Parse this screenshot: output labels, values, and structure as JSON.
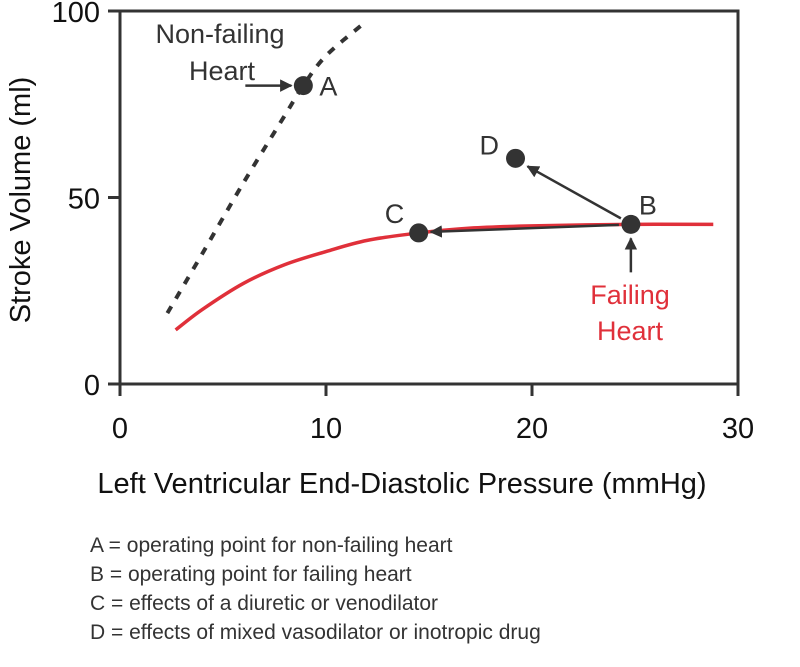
{
  "chart_data": {
    "type": "line",
    "title": "",
    "xlabel": "Left Ventricular End-Diastolic Pressure (mmHg)",
    "ylabel": "Stroke Volume (ml)",
    "xlim": [
      0,
      30
    ],
    "ylim": [
      0,
      100
    ],
    "xticks": [
      "0",
      "10",
      "20",
      "30"
    ],
    "yticks": [
      "0",
      "50",
      "100"
    ],
    "grid": false,
    "colors": {
      "axis": "#333333",
      "failing": "#e0303a",
      "nonfailing": "#333333",
      "points": "#333333"
    },
    "series": [
      {
        "name": "Non-failing Heart",
        "style": "dotted",
        "x": [
          2.3,
          4,
          6,
          8,
          8.9,
          10,
          11.9
        ],
        "y": [
          19,
          35,
          54,
          72,
          80,
          88,
          97
        ]
      },
      {
        "name": "Failing Heart",
        "style": "solid",
        "x": [
          2.7,
          4,
          6,
          8,
          10,
          12,
          14.5,
          17,
          20,
          24.8,
          28.8
        ],
        "y": [
          14.5,
          20,
          27,
          32,
          35.5,
          38.5,
          40.5,
          41.8,
          42.4,
          42.8,
          42.8
        ]
      }
    ],
    "points": [
      {
        "label": "A",
        "x": 8.9,
        "y": 80
      },
      {
        "label": "B",
        "x": 24.8,
        "y": 42.8
      },
      {
        "label": "C",
        "x": 14.5,
        "y": 40.5
      },
      {
        "label": "D",
        "x": 19.2,
        "y": 60.5
      }
    ],
    "annotations": {
      "nonfailing_label": [
        "Non-failing",
        "Heart"
      ],
      "failing_label": [
        "Failing",
        "Heart"
      ]
    }
  },
  "notes": [
    "A = operating point for non-failing heart",
    "B = operating point for failing heart",
    "C = effects of a diuretic or venodilator",
    "D = effects of mixed vasodilator or inotropic drug"
  ]
}
